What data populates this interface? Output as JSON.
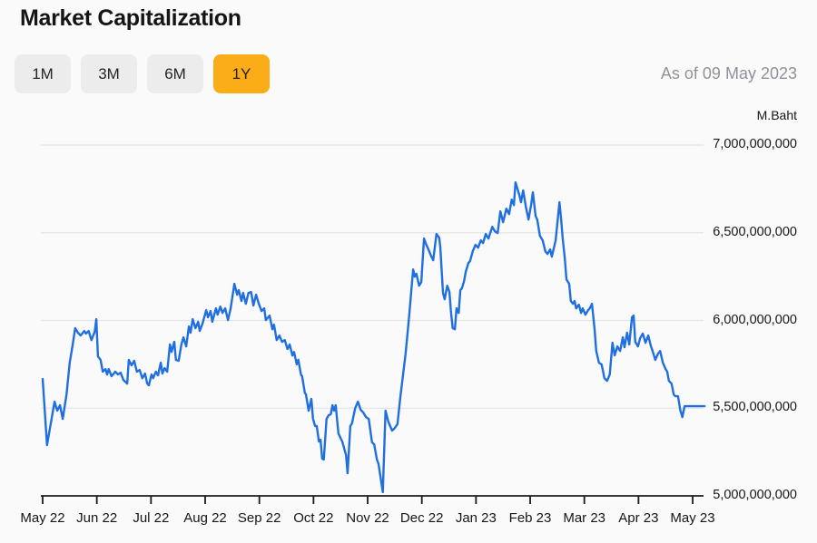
{
  "header": {
    "title": "Market Capitalization"
  },
  "controls": {
    "ranges": [
      {
        "label": "1M",
        "active": false
      },
      {
        "label": "3M",
        "active": false
      },
      {
        "label": "6M",
        "active": false
      },
      {
        "label": "1Y",
        "active": true
      }
    ],
    "as_of": "As of 09 May 2023"
  },
  "colors": {
    "background": "#FAFAFA",
    "accent_active_range": "#FBAD18",
    "button_bg": "#ECECED",
    "line": "#1F6FE0",
    "grid": "#E4E4E6",
    "axis": "#1A1A1A",
    "muted_text": "#8D929B"
  },
  "chart_data": {
    "type": "line",
    "title": "Market Capitalization",
    "unit": "M.Baht",
    "as_of": "As of 09 May 2023",
    "legend": "none",
    "grid": "horizontal",
    "x_axis_note": "months since 09 May 2022 (0 = May 22 tick, 12 = May 23 tick)",
    "x_tick_labels": [
      "May 22",
      "Jun 22",
      "Jul 22",
      "Aug 22",
      "Sep 22",
      "Oct 22",
      "Nov 22",
      "Dec 22",
      "Jan 23",
      "Feb 23",
      "Mar 23",
      "Apr 23",
      "May 23"
    ],
    "x_tick_months": [
      0,
      1,
      2,
      3,
      4,
      5,
      6,
      7,
      8,
      9,
      10,
      11,
      12
    ],
    "y_tick_labels": [
      "7,000,000,000",
      "6,500,000,000",
      "6,000,000,000",
      "5,500,000,000",
      "5,000,000,000"
    ],
    "y_tick_values_billion": [
      7.0,
      6.5,
      6.0,
      5.5,
      5.0
    ],
    "ylim_billion": [
      5.0,
      7.0
    ],
    "xlim_months": [
      0,
      12.22
    ],
    "series": [
      {
        "name": "Market Capitalization (M.Baht)",
        "points_month_valueBillion": [
          [
            0.0,
            5.666
          ],
          [
            0.08,
            5.289
          ],
          [
            0.22,
            5.537
          ],
          [
            0.27,
            5.486
          ],
          [
            0.32,
            5.517
          ],
          [
            0.37,
            5.439
          ],
          [
            0.44,
            5.579
          ],
          [
            0.5,
            5.759
          ],
          [
            0.55,
            5.852
          ],
          [
            0.6,
            5.956
          ],
          [
            0.65,
            5.93
          ],
          [
            0.7,
            5.914
          ],
          [
            0.77,
            5.94
          ],
          [
            0.8,
            5.925
          ],
          [
            0.85,
            5.94
          ],
          [
            0.9,
            5.888
          ],
          [
            0.96,
            5.935
          ],
          [
            0.99,
            6.007
          ],
          [
            1.02,
            5.795
          ],
          [
            1.07,
            5.775
          ],
          [
            1.11,
            5.708
          ],
          [
            1.16,
            5.723
          ],
          [
            1.19,
            5.692
          ],
          [
            1.22,
            5.723
          ],
          [
            1.27,
            5.682
          ],
          [
            1.34,
            5.708
          ],
          [
            1.39,
            5.692
          ],
          [
            1.44,
            5.702
          ],
          [
            1.49,
            5.661
          ],
          [
            1.56,
            5.64
          ],
          [
            1.59,
            5.775
          ],
          [
            1.64,
            5.744
          ],
          [
            1.69,
            5.77
          ],
          [
            1.74,
            5.708
          ],
          [
            1.79,
            5.718
          ],
          [
            1.84,
            5.671
          ],
          [
            1.89,
            5.697
          ],
          [
            1.93,
            5.64
          ],
          [
            1.96,
            5.63
          ],
          [
            2.01,
            5.692
          ],
          [
            2.04,
            5.671
          ],
          [
            2.09,
            5.708
          ],
          [
            2.13,
            5.687
          ],
          [
            2.18,
            5.759
          ],
          [
            2.21,
            5.697
          ],
          [
            2.25,
            5.728
          ],
          [
            2.3,
            5.708
          ],
          [
            2.35,
            5.863
          ],
          [
            2.38,
            5.821
          ],
          [
            2.43,
            5.878
          ],
          [
            2.46,
            5.775
          ],
          [
            2.51,
            5.77
          ],
          [
            2.56,
            5.863
          ],
          [
            2.6,
            5.904
          ],
          [
            2.65,
            5.852
          ],
          [
            2.7,
            5.966
          ],
          [
            2.73,
            5.93
          ],
          [
            2.77,
            6.007
          ],
          [
            2.82,
            5.956
          ],
          [
            2.87,
            5.992
          ],
          [
            2.9,
            5.94
          ],
          [
            2.95,
            5.981
          ],
          [
            3.02,
            6.059
          ],
          [
            3.05,
            6.018
          ],
          [
            3.1,
            6.054
          ],
          [
            3.13,
            5.992
          ],
          [
            3.2,
            6.069
          ],
          [
            3.23,
            6.033
          ],
          [
            3.28,
            6.079
          ],
          [
            3.32,
            6.043
          ],
          [
            3.37,
            6.069
          ],
          [
            3.42,
            6.002
          ],
          [
            3.47,
            6.069
          ],
          [
            3.54,
            6.209
          ],
          [
            3.59,
            6.147
          ],
          [
            3.62,
            6.173
          ],
          [
            3.67,
            6.111
          ],
          [
            3.7,
            6.157
          ],
          [
            3.75,
            6.095
          ],
          [
            3.8,
            6.157
          ],
          [
            3.85,
            6.162
          ],
          [
            3.89,
            6.085
          ],
          [
            3.94,
            6.147
          ],
          [
            3.99,
            6.095
          ],
          [
            4.04,
            6.054
          ],
          [
            4.09,
            6.069
          ],
          [
            4.12,
            6.002
          ],
          [
            4.19,
            6.028
          ],
          [
            4.24,
            5.95
          ],
          [
            4.27,
            5.976
          ],
          [
            4.32,
            5.888
          ],
          [
            4.37,
            5.914
          ],
          [
            4.42,
            5.878
          ],
          [
            4.47,
            5.888
          ],
          [
            4.52,
            5.837
          ],
          [
            4.56,
            5.863
          ],
          [
            4.61,
            5.8
          ],
          [
            4.64,
            5.82
          ],
          [
            4.69,
            5.75
          ],
          [
            4.72,
            5.776
          ],
          [
            4.77,
            5.69
          ],
          [
            4.79,
            5.682
          ],
          [
            4.84,
            5.587
          ],
          [
            4.86,
            5.579
          ],
          [
            4.91,
            5.486
          ],
          [
            4.96,
            5.553
          ],
          [
            4.99,
            5.44
          ],
          [
            5.03,
            5.398
          ],
          [
            5.06,
            5.398
          ],
          [
            5.1,
            5.31
          ],
          [
            5.13,
            5.32
          ],
          [
            5.16,
            5.212
          ],
          [
            5.19,
            5.207
          ],
          [
            5.24,
            5.439
          ],
          [
            5.28,
            5.46
          ],
          [
            5.32,
            5.465
          ],
          [
            5.35,
            5.517
          ],
          [
            5.38,
            5.486
          ],
          [
            5.41,
            5.517
          ],
          [
            5.46,
            5.356
          ],
          [
            5.53,
            5.31
          ],
          [
            5.6,
            5.232
          ],
          [
            5.63,
            5.129
          ],
          [
            5.68,
            5.398
          ],
          [
            5.71,
            5.413
          ],
          [
            5.77,
            5.501
          ],
          [
            5.82,
            5.537
          ],
          [
            5.87,
            5.491
          ],
          [
            5.92,
            5.475
          ],
          [
            5.97,
            5.449
          ],
          [
            6.02,
            5.439
          ],
          [
            6.08,
            5.305
          ],
          [
            6.12,
            5.294
          ],
          [
            6.17,
            5.207
          ],
          [
            6.2,
            5.181
          ],
          [
            6.28,
            5.021
          ],
          [
            6.33,
            5.486
          ],
          [
            6.38,
            5.424
          ],
          [
            6.45,
            5.372
          ],
          [
            6.5,
            5.387
          ],
          [
            6.55,
            5.408
          ],
          [
            6.6,
            5.553
          ],
          [
            6.65,
            5.682
          ],
          [
            6.7,
            5.811
          ],
          [
            6.74,
            5.94
          ],
          [
            6.77,
            6.043
          ],
          [
            6.84,
            6.291
          ],
          [
            6.87,
            6.25
          ],
          [
            6.9,
            6.266
          ],
          [
            6.95,
            6.198
          ],
          [
            6.99,
            6.219
          ],
          [
            7.04,
            6.467
          ],
          [
            7.07,
            6.441
          ],
          [
            7.12,
            6.405
          ],
          [
            7.17,
            6.369
          ],
          [
            7.21,
            6.343
          ],
          [
            7.27,
            6.493
          ],
          [
            7.32,
            6.472
          ],
          [
            7.34,
            6.42
          ],
          [
            7.39,
            6.157
          ],
          [
            7.42,
            6.121
          ],
          [
            7.47,
            6.198
          ],
          [
            7.51,
            6.162
          ],
          [
            7.54,
            6.043
          ],
          [
            7.57,
            5.956
          ],
          [
            7.61,
            5.95
          ],
          [
            7.64,
            6.069
          ],
          [
            7.68,
            6.043
          ],
          [
            7.71,
            6.173
          ],
          [
            7.74,
            6.183
          ],
          [
            7.78,
            6.224
          ],
          [
            7.81,
            6.276
          ],
          [
            7.86,
            6.328
          ],
          [
            7.89,
            6.338
          ],
          [
            7.94,
            6.395
          ],
          [
            7.99,
            6.431
          ],
          [
            8.04,
            6.415
          ],
          [
            8.09,
            6.457
          ],
          [
            8.13,
            6.441
          ],
          [
            8.18,
            6.493
          ],
          [
            8.23,
            6.467
          ],
          [
            8.3,
            6.534
          ],
          [
            8.35,
            6.508
          ],
          [
            8.4,
            6.498
          ],
          [
            8.45,
            6.622
          ],
          [
            8.5,
            6.56
          ],
          [
            8.56,
            6.637
          ],
          [
            8.61,
            6.606
          ],
          [
            8.66,
            6.689
          ],
          [
            8.7,
            6.658
          ],
          [
            8.73,
            6.787
          ],
          [
            8.8,
            6.715
          ],
          [
            8.83,
            6.674
          ],
          [
            8.87,
            6.741
          ],
          [
            8.92,
            6.648
          ],
          [
            8.97,
            6.575
          ],
          [
            9.02,
            6.663
          ],
          [
            9.05,
            6.73
          ],
          [
            9.1,
            6.596
          ],
          [
            9.13,
            6.575
          ],
          [
            9.18,
            6.482
          ],
          [
            9.23,
            6.457
          ],
          [
            9.28,
            6.395
          ],
          [
            9.32,
            6.379
          ],
          [
            9.37,
            6.405
          ],
          [
            9.4,
            6.364
          ],
          [
            9.47,
            6.457
          ],
          [
            9.5,
            6.55
          ],
          [
            9.54,
            6.674
          ],
          [
            9.57,
            6.586
          ],
          [
            9.6,
            6.472
          ],
          [
            9.64,
            6.353
          ],
          [
            9.67,
            6.234
          ],
          [
            9.72,
            6.209
          ],
          [
            9.75,
            6.111
          ],
          [
            9.79,
            6.095
          ],
          [
            9.82,
            6.111
          ],
          [
            9.85,
            6.069
          ],
          [
            9.9,
            6.09
          ],
          [
            9.94,
            6.043
          ],
          [
            9.97,
            6.069
          ],
          [
            10.02,
            6.033
          ],
          [
            10.07,
            6.059
          ],
          [
            10.1,
            6.069
          ],
          [
            10.14,
            6.095
          ],
          [
            10.19,
            5.95
          ],
          [
            10.22,
            5.826
          ],
          [
            10.27,
            5.759
          ],
          [
            10.32,
            5.749
          ],
          [
            10.37,
            5.671
          ],
          [
            10.42,
            5.656
          ],
          [
            10.47,
            5.692
          ],
          [
            10.52,
            5.873
          ],
          [
            10.56,
            5.801
          ],
          [
            10.61,
            5.852
          ],
          [
            10.66,
            5.826
          ],
          [
            10.71,
            5.904
          ],
          [
            10.74,
            5.847
          ],
          [
            10.79,
            5.93
          ],
          [
            10.83,
            5.863
          ],
          [
            10.88,
            6.018
          ],
          [
            10.91,
            6.028
          ],
          [
            10.94,
            5.878
          ],
          [
            10.99,
            5.852
          ],
          [
            11.03,
            5.899
          ],
          [
            11.08,
            5.925
          ],
          [
            11.13,
            5.873
          ],
          [
            11.18,
            5.914
          ],
          [
            11.23,
            5.852
          ],
          [
            11.26,
            5.826
          ],
          [
            11.31,
            5.775
          ],
          [
            11.36,
            5.811
          ],
          [
            11.4,
            5.826
          ],
          [
            11.45,
            5.759
          ],
          [
            11.5,
            5.723
          ],
          [
            11.53,
            5.708
          ],
          [
            11.56,
            5.656
          ],
          [
            11.61,
            5.64
          ],
          [
            11.65,
            5.578
          ],
          [
            11.68,
            5.568
          ],
          [
            11.73,
            5.568
          ],
          [
            11.77,
            5.491
          ],
          [
            11.81,
            5.449
          ],
          [
            11.85,
            5.511
          ],
          [
            11.92,
            5.511
          ],
          [
            12.0,
            5.511
          ],
          [
            12.1,
            5.511
          ],
          [
            12.22,
            5.511
          ]
        ]
      }
    ]
  }
}
